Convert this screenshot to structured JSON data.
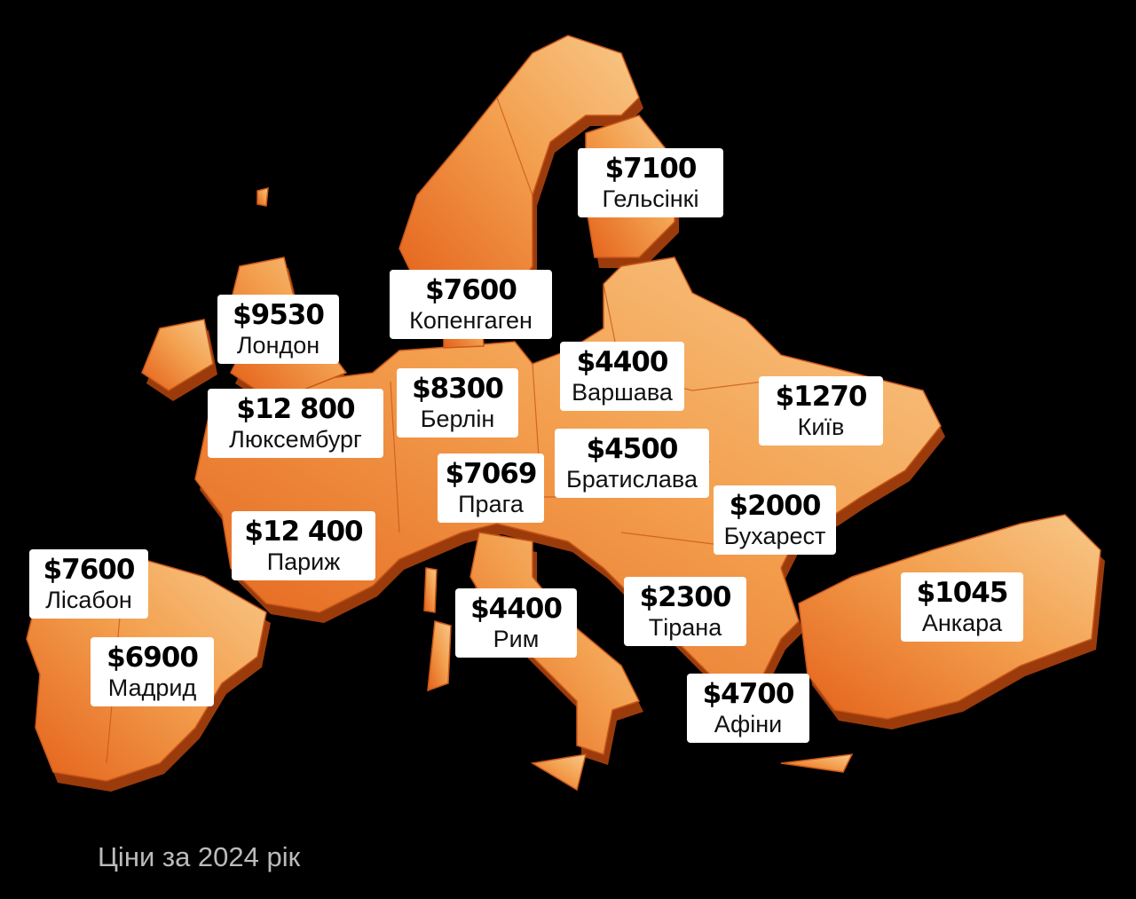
{
  "labels": [
    {
      "price": "$7100",
      "city": "Гельсінкі"
    },
    {
      "price": "$7600",
      "city": "Копенгаген"
    },
    {
      "price": "$9530",
      "city": "Лондон"
    },
    {
      "price": "$4400",
      "city": "Варшава"
    },
    {
      "price": "$1270",
      "city": "Київ"
    },
    {
      "price": "$8300",
      "city": "Берлін"
    },
    {
      "price": "$12 800",
      "city": "Люксембург"
    },
    {
      "price": "$4500",
      "city": "Братислава"
    },
    {
      "price": "$7069",
      "city": "Прага"
    },
    {
      "price": "$2000",
      "city": "Бухарест"
    },
    {
      "price": "$12 400",
      "city": "Париж"
    },
    {
      "price": "$7600",
      "city": "Лісабон"
    },
    {
      "price": "$2300",
      "city": "Тірана"
    },
    {
      "price": "$4400",
      "city": "Рим"
    },
    {
      "price": "$1045",
      "city": "Анкара"
    },
    {
      "price": "$6900",
      "city": "Мадрид"
    },
    {
      "price": "$4700",
      "city": "Афіни"
    }
  ],
  "footer": "Ціни за 2024 рік"
}
